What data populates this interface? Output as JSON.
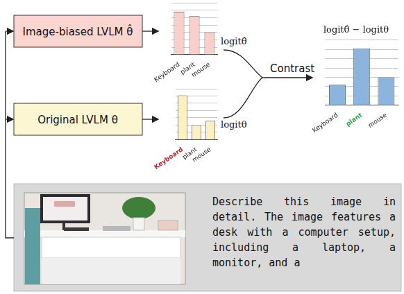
{
  "nodes": [
    {
      "label": "Image-biased LVLM θ̂"
    },
    {
      "label": "Original LVLM θ"
    }
  ],
  "edge_labels": {
    "top": "logitθ̂",
    "bottom": "logitθ",
    "merge": "Contrast"
  },
  "chart_data": [
    {
      "type": "bar",
      "categories": [
        "Keyboard",
        "plant",
        "mouse"
      ],
      "values": [
        5.8,
        5.2,
        3.0
      ],
      "color": "#f9cfcc",
      "ylim": [
        0,
        7
      ],
      "yticks": [
        0,
        1,
        2,
        3,
        4,
        5,
        6,
        7
      ],
      "grid": true,
      "tick_labels": "x"
    },
    {
      "type": "bar",
      "categories": [
        "Keyboard",
        "plant",
        "mouse"
      ],
      "values": [
        6.1,
        2.0,
        2.6
      ],
      "color": "#fdf1c4",
      "ylim": [
        0,
        7
      ],
      "yticks": [
        0,
        1,
        2,
        3,
        4,
        5,
        6,
        7
      ],
      "grid": true,
      "tick_labels": "x"
    },
    {
      "type": "bar",
      "title": "logitθ̂ − logitθ",
      "categories": [
        "Keyboard",
        "plant",
        "mouse"
      ],
      "values": [
        2.2,
        6.1,
        3.0
      ],
      "color": "#8db4dc",
      "ylim": [
        0,
        7
      ],
      "yticks": [
        0,
        1,
        2,
        3,
        4,
        5,
        6,
        7
      ],
      "grid": true,
      "tick_labels": "x"
    }
  ],
  "prompt_text": "Describe this image in detail. The image features a desk with a computer setup, including a laptop, a monitor, and a"
}
